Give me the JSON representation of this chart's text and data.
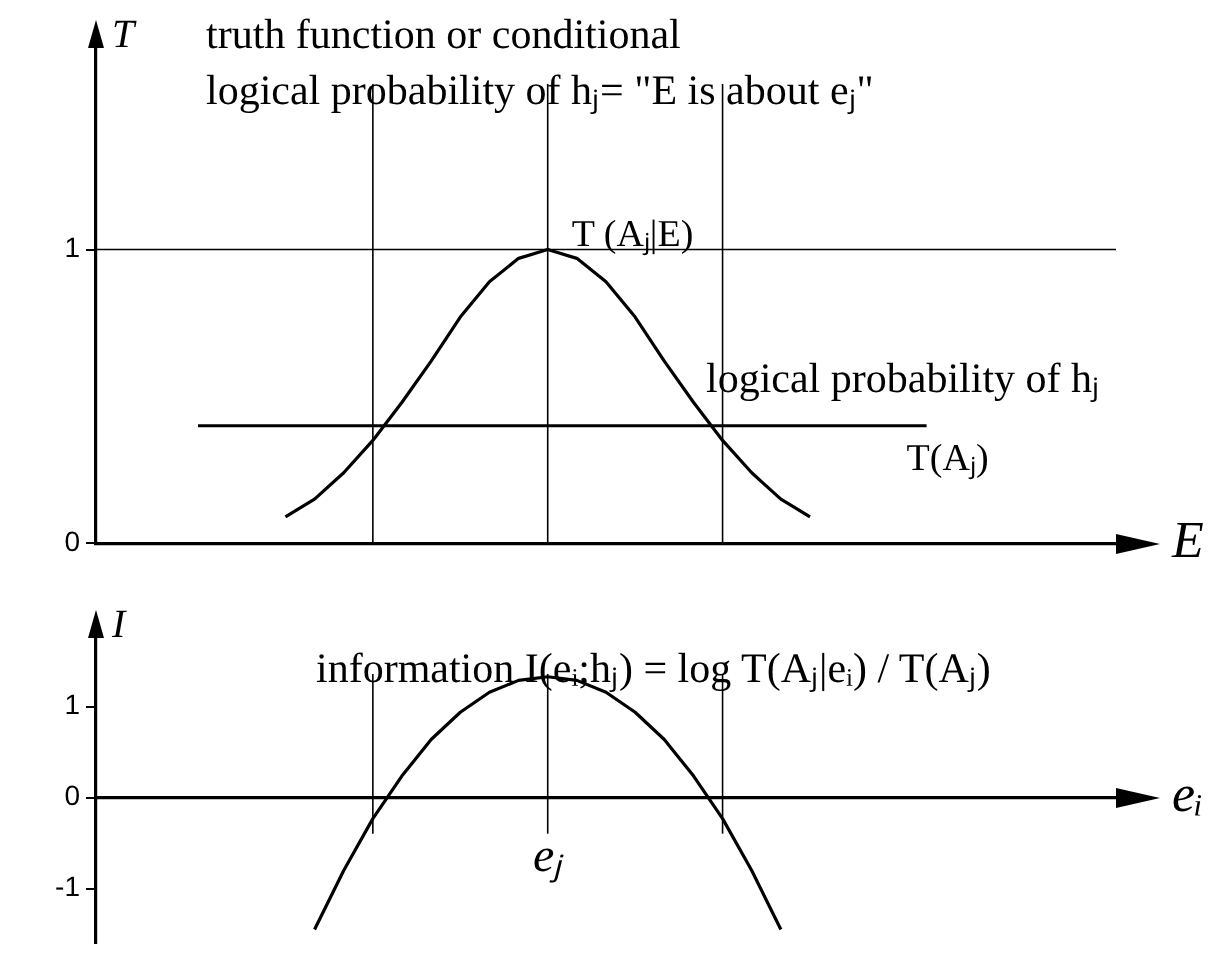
{
  "chart_data": [
    {
      "type": "line",
      "ylabel": "T",
      "xlabel": "E",
      "annotations": [
        "truth function or conditional",
        "logical probability of hⱼ= \"E is about eⱼ\"",
        "logical probability of hⱼ"
      ],
      "categories": [
        null,
        null,
        null,
        null,
        null,
        null,
        null,
        null,
        null,
        null,
        null,
        null,
        null,
        null,
        null,
        null,
        null,
        null,
        null,
        null,
        null,
        null,
        null,
        null,
        null,
        null,
        null,
        null,
        null,
        null,
        null,
        null,
        null,
        null,
        null
      ],
      "series": [
        {
          "name": "T (Aⱼ|E)",
          "color": "#000000",
          "values": [
            null,
            null,
            null,
            null,
            null,
            null,
            0.09,
            0.15,
            0.24,
            0.35,
            0.48,
            0.62,
            0.77,
            0.89,
            0.97,
            1,
            0.97,
            0.89,
            0.77,
            0.62,
            0.48,
            0.35,
            0.24,
            0.15,
            0.09,
            null,
            null,
            null,
            null,
            null,
            null,
            null,
            null,
            null,
            null
          ]
        },
        {
          "name": "T(Aⱼ)",
          "color": "#000000",
          "values": [
            null,
            null,
            null,
            0.4,
            0.4,
            0.4,
            0.4,
            0.4,
            0.4,
            0.4,
            0.4,
            0.4,
            0.4,
            0.4,
            0.4,
            0.4,
            0.4,
            0.4,
            0.4,
            0.4,
            0.4,
            0.4,
            0.4,
            0.4,
            0.4,
            0.4,
            0.4,
            0.4,
            0.4,
            null,
            null,
            null,
            null,
            null,
            null
          ]
        }
      ],
      "ylim": [
        0,
        1.7
      ],
      "yticks": [
        0,
        1
      ],
      "ref_lines": [
        {
          "axis": "y",
          "value": 1
        }
      ]
    },
    {
      "type": "line",
      "ylabel": "I",
      "xlabel": "eᵢ",
      "annotations": [
        "information I(eᵢ;hⱼ) = log T(Aⱼ|eᵢ) / T(Aⱼ)"
      ],
      "categories": [
        null,
        null,
        null,
        null,
        null,
        null,
        null,
        null,
        null,
        null,
        null,
        null,
        null,
        null,
        null,
        "eⱼ",
        null,
        null,
        null,
        null,
        null,
        null,
        null,
        null,
        null,
        null,
        null,
        null,
        null,
        null,
        null,
        null,
        null,
        null,
        null
      ],
      "series": [
        {
          "color": "#000000",
          "values": [
            null,
            null,
            null,
            null,
            null,
            null,
            null,
            -1.45,
            -0.8,
            -0.23,
            0.24,
            0.64,
            0.94,
            1.16,
            1.29,
            1.33,
            1.29,
            1.16,
            0.94,
            0.64,
            0.24,
            -0.23,
            -0.8,
            -1.45,
            null,
            null,
            null,
            null,
            null,
            null,
            null,
            null,
            null,
            null,
            null
          ]
        }
      ],
      "ylim": [
        -1.6,
        1.8
      ],
      "yticks": [
        1,
        0,
        -1
      ]
    }
  ]
}
